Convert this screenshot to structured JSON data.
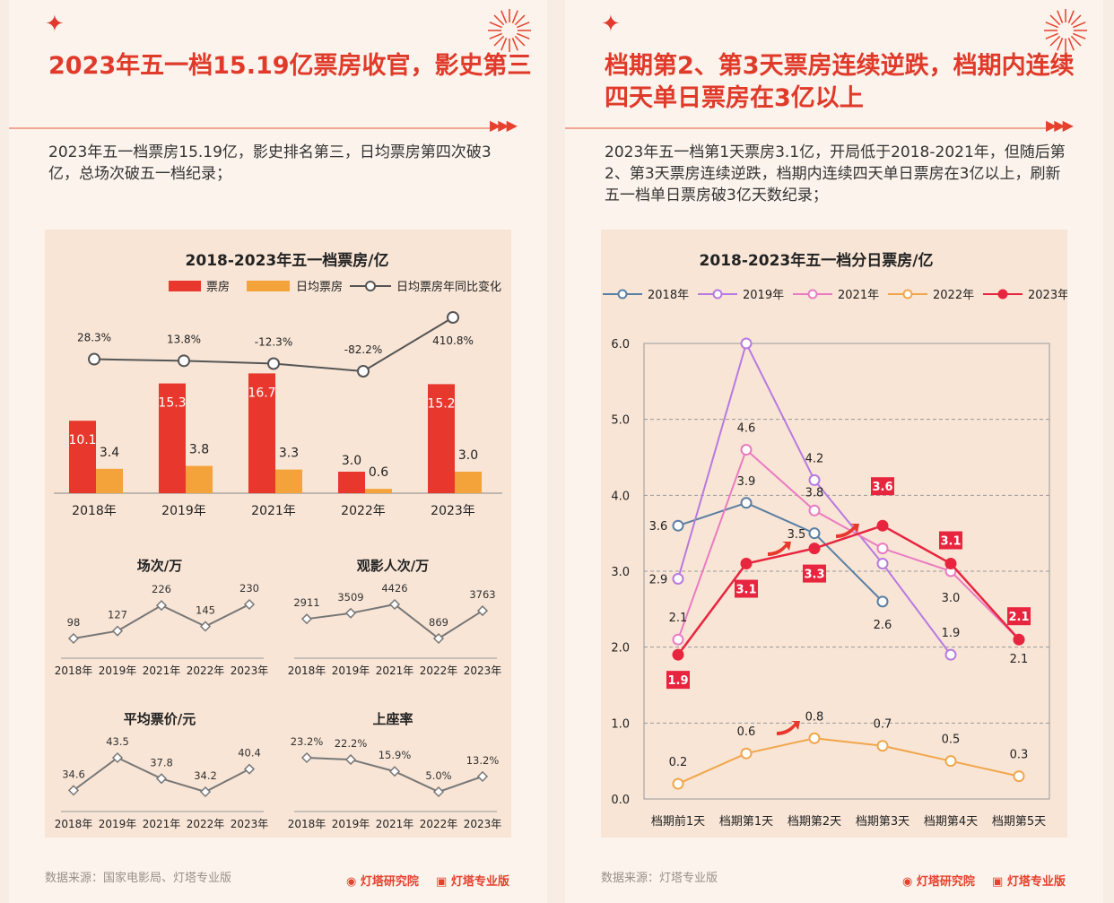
{
  "left": {
    "title": "2023年五一档15.19亿票房收官，影史第三",
    "description": "2023年五一档票房15.19亿，影史排名第三，日均票房第四次破3亿，总场次破五一档纪录；",
    "main_chart_title": "2018-2023年五一档票房/亿",
    "legend": [
      "票房",
      "日均票房",
      "日均票房年同比变化"
    ],
    "small_titles": [
      "场次/万",
      "观影人次/万",
      "平均票价/元",
      "上座率"
    ],
    "source": "数据来源：国家电影局、灯塔专业版",
    "brand_research": "灯塔研究院",
    "brand_pro": "灯塔专业版"
  },
  "right": {
    "title": "档期第2、第3天票房连续逆跌，档期内连续四天单日票房在3亿以上",
    "description": "2023年五一档第1天票房3.1亿，开局低于2018-2021年，但随后第2、第3天票房连续逆跌，档期内连续四天单日票房在3亿以上，刷新五一档单日票房破3亿天数纪录；",
    "chart_title": "2018-2023年五一档分日票房/亿",
    "source": "数据来源：灯塔专业版",
    "brand_research": "灯塔研究院",
    "brand_pro": "灯塔专业版"
  },
  "colors": {
    "accent": "#e03a2a",
    "box_office": "#e8382d",
    "daily_avg": "#f4a23a",
    "line_gray": "#555555",
    "s2018": "#5a7fa3",
    "s2019": "#b77ae0",
    "s2021": "#ea7bc2",
    "s2022": "#f1a64a",
    "s2023": "#e8253f"
  },
  "chart_data": [
    {
      "type": "bar",
      "title": "2018-2023年五一档票房/亿",
      "categories": [
        "2018年",
        "2019年",
        "2021年",
        "2022年",
        "2023年"
      ],
      "series": [
        {
          "name": "票房",
          "values": [
            10.1,
            15.3,
            16.7,
            3.0,
            15.2
          ],
          "labels": [
            "10.1",
            "15.3",
            "16.7",
            "3.0",
            "15.2"
          ]
        },
        {
          "name": "日均票房",
          "values": [
            3.4,
            3.8,
            3.3,
            0.6,
            3.0
          ],
          "labels": [
            "3.4",
            "3.8",
            "3.3",
            "0.6",
            "3.0"
          ]
        },
        {
          "name": "日均票房年同比变化",
          "type": "line",
          "values": [
            28.3,
            13.8,
            -12.3,
            -82.2,
            410.8
          ],
          "labels": [
            "28.3%",
            "13.8%",
            "-12.3%",
            "-82.2%",
            "410.8%"
          ]
        }
      ],
      "legend_position": "top-right"
    },
    {
      "type": "line",
      "title": "场次/万",
      "categories": [
        "2018年",
        "2019年",
        "2021年",
        "2022年",
        "2023年"
      ],
      "values": [
        98,
        127,
        226,
        145,
        230
      ],
      "labels": [
        "98",
        "127",
        "226",
        "145",
        "230"
      ]
    },
    {
      "type": "line",
      "title": "观影人次/万",
      "categories": [
        "2018年",
        "2019年",
        "2021年",
        "2022年",
        "2023年"
      ],
      "values": [
        2911,
        3509,
        4426,
        869,
        3763
      ],
      "labels": [
        "2911",
        "3509",
        "4426",
        "869",
        "3763"
      ]
    },
    {
      "type": "line",
      "title": "平均票价/元",
      "categories": [
        "2018年",
        "2019年",
        "2021年",
        "2022年",
        "2023年"
      ],
      "values": [
        34.6,
        43.5,
        37.8,
        34.2,
        40.4
      ],
      "labels": [
        "34.6",
        "43.5",
        "37.8",
        "34.2",
        "40.4"
      ]
    },
    {
      "type": "line",
      "title": "上座率",
      "categories": [
        "2018年",
        "2019年",
        "2021年",
        "2022年",
        "2023年"
      ],
      "values": [
        23.2,
        22.2,
        15.9,
        5.0,
        13.2
      ],
      "labels": [
        "23.2%",
        "22.2%",
        "15.9%",
        "5.0%",
        "13.2%"
      ]
    },
    {
      "type": "line",
      "title": "2018-2023年五一档分日票房/亿",
      "categories": [
        "档期前1天",
        "档期第1天",
        "档期第2天",
        "档期第3天",
        "档期第4天",
        "档期第5天"
      ],
      "ylim": [
        0,
        6
      ],
      "yticks": [
        "0.0",
        "1.0",
        "2.0",
        "3.0",
        "4.0",
        "5.0",
        "6.0"
      ],
      "grid": true,
      "legend_position": "top",
      "series": [
        {
          "name": "2018年",
          "values": [
            3.6,
            3.9,
            3.5,
            2.6,
            null,
            null
          ],
          "labels": [
            "3.6",
            "3.9",
            "",
            "2.6",
            "",
            ""
          ]
        },
        {
          "name": "2019年",
          "values": [
            2.9,
            6.0,
            4.2,
            3.1,
            1.9,
            null
          ],
          "labels": [
            "2.9",
            "",
            "4.2",
            "",
            "1.9",
            ""
          ]
        },
        {
          "name": "2021年",
          "values": [
            2.1,
            4.6,
            3.8,
            3.3,
            3.0,
            2.1
          ],
          "labels": [
            "2.1",
            "4.6",
            "3.8",
            "",
            "3.0",
            "2.1"
          ]
        },
        {
          "name": "2022年",
          "values": [
            0.2,
            0.6,
            0.8,
            0.7,
            0.5,
            0.3
          ],
          "labels": [
            "0.2",
            "0.6",
            "0.8",
            "0.7",
            "0.5",
            "0.3"
          ]
        },
        {
          "name": "2023年",
          "values": [
            1.9,
            3.1,
            3.3,
            3.6,
            3.1,
            2.1
          ],
          "labels": [
            "1.9",
            "3.1",
            "3.3",
            "3.6",
            "3.1",
            "2.1"
          ]
        }
      ],
      "annotations": [
        "3.5"
      ]
    }
  ]
}
